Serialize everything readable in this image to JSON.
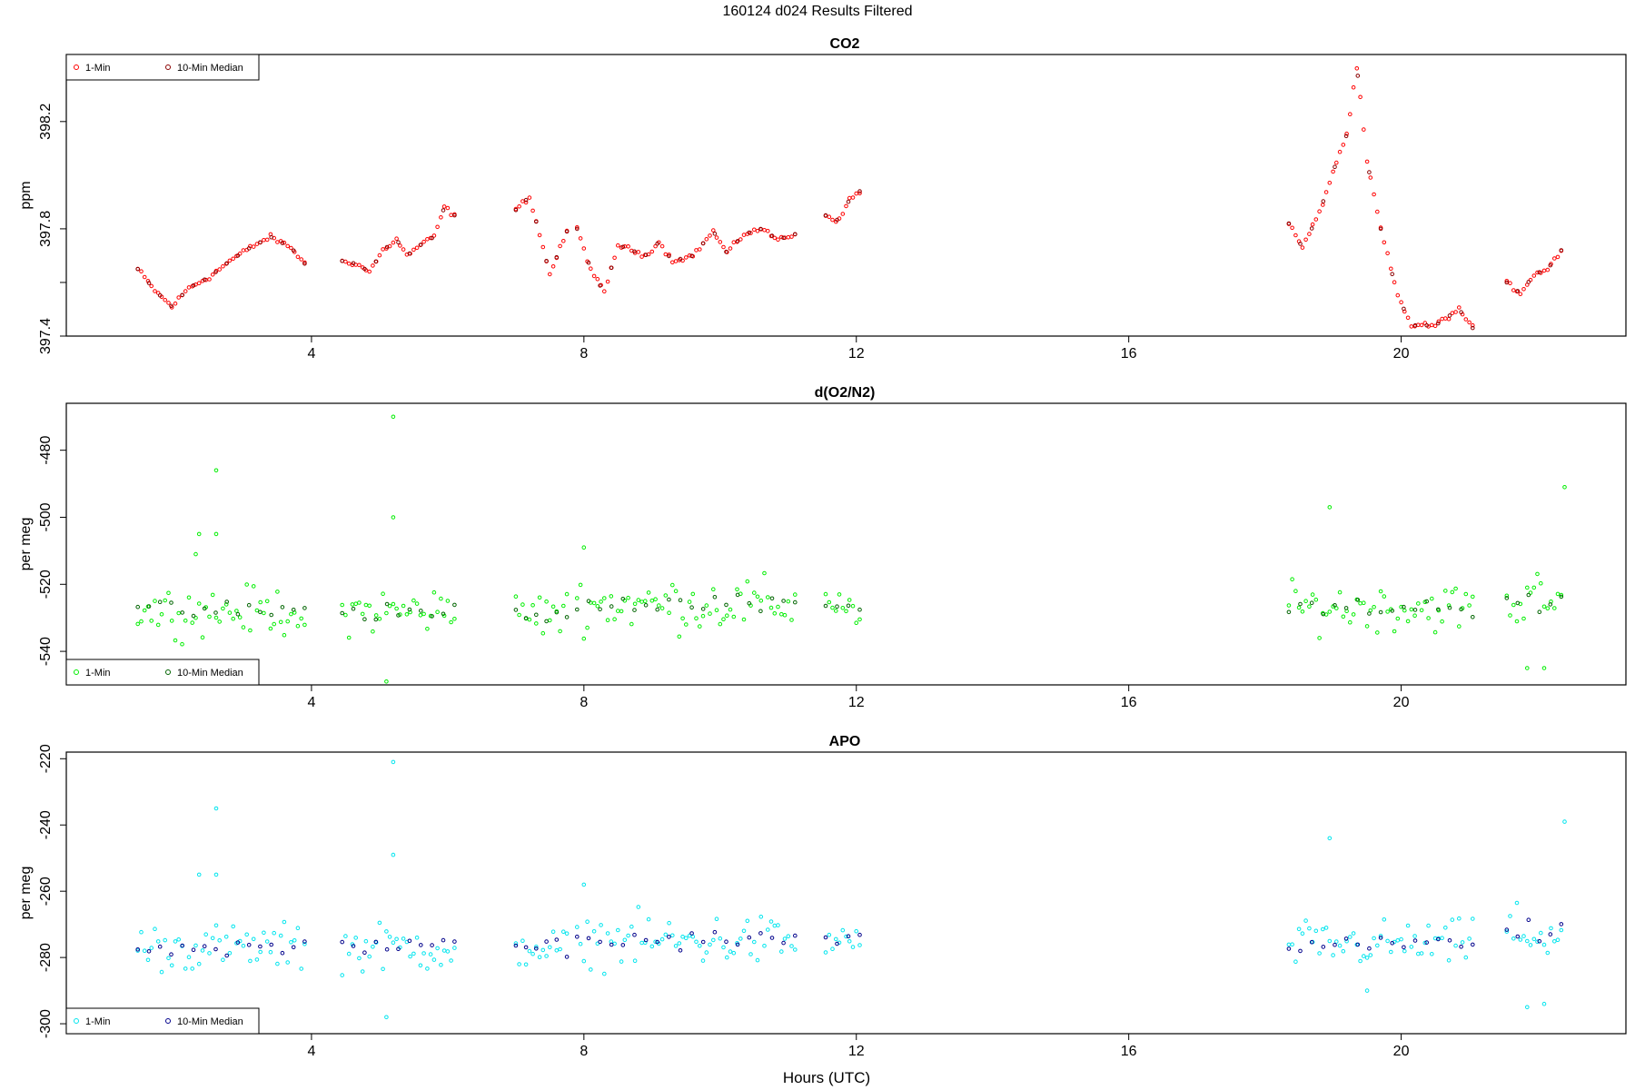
{
  "page_title": "160124   d024   Results Filtered",
  "xlabel": "Hours (UTC)",
  "chart_data": [
    {
      "type": "scatter",
      "title": "CO2",
      "ylabel": "ppm",
      "xlim": [
        0.4,
        23.3
      ],
      "ylim": [
        397.4,
        398.45
      ],
      "xticks": [
        4,
        8,
        12,
        16,
        20
      ],
      "yticks": [
        397.4,
        397.6,
        397.8,
        398.2
      ],
      "ytick_labels": [
        "397.4",
        "",
        "397.8",
        "398.2"
      ],
      "legend": {
        "position": "top-left",
        "entries": [
          "1-Min",
          "10-Min Median"
        ]
      },
      "colors": {
        "one_min": "#ff0000",
        "median": "#8b0000"
      },
      "segments": [
        {
          "x_start": 1.45,
          "x_end": 3.9,
          "points": [
            [
              1.45,
              397.65
            ],
            [
              1.7,
              397.57
            ],
            [
              1.95,
              397.51
            ],
            [
              2.2,
              397.58
            ],
            [
              2.5,
              397.62
            ],
            [
              2.8,
              397.68
            ],
            [
              3.1,
              397.73
            ],
            [
              3.4,
              397.77
            ],
            [
              3.7,
              397.73
            ],
            [
              3.9,
              397.67
            ]
          ]
        },
        {
          "x_start": 4.45,
          "x_end": 6.1,
          "points": [
            [
              4.45,
              397.68
            ],
            [
              4.65,
              397.67
            ],
            [
              4.85,
              397.64
            ],
            [
              5.05,
              397.72
            ],
            [
              5.25,
              397.76
            ],
            [
              5.4,
              397.7
            ],
            [
              5.6,
              397.74
            ],
            [
              5.8,
              397.77
            ],
            [
              5.95,
              397.88
            ],
            [
              6.1,
              397.85
            ]
          ]
        },
        {
          "x_start": 7.0,
          "x_end": 7.75,
          "points": [
            [
              7.0,
              397.87
            ],
            [
              7.2,
              397.92
            ],
            [
              7.35,
              397.78
            ],
            [
              7.5,
              397.63
            ],
            [
              7.75,
              397.79
            ]
          ]
        },
        {
          "x_start": 7.9,
          "x_end": 11.1,
          "points": [
            [
              7.9,
              397.8
            ],
            [
              8.1,
              397.65
            ],
            [
              8.3,
              397.56
            ],
            [
              8.5,
              397.74
            ],
            [
              8.7,
              397.72
            ],
            [
              8.9,
              397.7
            ],
            [
              9.1,
              397.75
            ],
            [
              9.3,
              397.68
            ],
            [
              9.6,
              397.7
            ],
            [
              9.9,
              397.79
            ],
            [
              10.1,
              397.71
            ],
            [
              10.35,
              397.78
            ],
            [
              10.6,
              397.8
            ],
            [
              10.85,
              397.76
            ],
            [
              11.1,
              397.78
            ]
          ]
        },
        {
          "x_start": 11.55,
          "x_end": 12.05,
          "points": [
            [
              11.55,
              397.85
            ],
            [
              11.75,
              397.83
            ],
            [
              11.9,
              397.91
            ],
            [
              12.05,
              397.94
            ]
          ]
        },
        {
          "x_start": 18.35,
          "x_end": 21.05,
          "points": [
            [
              18.35,
              397.82
            ],
            [
              18.55,
              397.73
            ],
            [
              18.8,
              397.86
            ],
            [
              19.05,
              398.05
            ],
            [
              19.2,
              398.15
            ],
            [
              19.35,
              398.4
            ],
            [
              19.5,
              398.05
            ],
            [
              19.7,
              397.8
            ],
            [
              19.95,
              397.55
            ],
            [
              20.15,
              397.44
            ],
            [
              20.5,
              397.44
            ],
            [
              20.85,
              397.5
            ],
            [
              21.05,
              397.43
            ]
          ]
        },
        {
          "x_start": 21.55,
          "x_end": 22.35,
          "points": [
            [
              21.55,
              397.6
            ],
            [
              21.75,
              397.56
            ],
            [
              21.95,
              397.63
            ],
            [
              22.15,
              397.65
            ],
            [
              22.35,
              397.72
            ]
          ]
        }
      ]
    },
    {
      "type": "scatter",
      "title": "d(O2/N2)",
      "ylabel": "per meg",
      "xlim": [
        0.4,
        23.3
      ],
      "ylim": [
        -550,
        -466
      ],
      "xticks": [
        4,
        8,
        12,
        16,
        20
      ],
      "yticks": [
        -540,
        -520,
        -500,
        -480
      ],
      "legend": {
        "position": "bottom-left",
        "entries": [
          "1-Min",
          "10-Min Median"
        ]
      },
      "colors": {
        "one_min": "#00ee00",
        "median": "#006400"
      },
      "segments": [
        {
          "x_start": 1.45,
          "x_end": 3.9,
          "center": -528,
          "spread": 7
        },
        {
          "x_start": 4.45,
          "x_end": 6.1,
          "center": -528,
          "spread": 7
        },
        {
          "x_start": 7.0,
          "x_end": 7.75,
          "center": -529,
          "spread": 7
        },
        {
          "x_start": 7.9,
          "x_end": 11.1,
          "center": -526,
          "spread": 8
        },
        {
          "x_start": 11.55,
          "x_end": 12.05,
          "center": -527,
          "spread": 5
        },
        {
          "x_start": 18.35,
          "x_end": 21.05,
          "center": -527,
          "spread": 7
        },
        {
          "x_start": 21.55,
          "x_end": 22.35,
          "center": -525,
          "spread": 9
        }
      ],
      "outliers": [
        [
          2.6,
          -486
        ],
        [
          2.35,
          -505
        ],
        [
          2.6,
          -505
        ],
        [
          2.3,
          -511
        ],
        [
          5.2,
          -470
        ],
        [
          5.2,
          -500
        ],
        [
          5.1,
          -549
        ],
        [
          8.0,
          -509
        ],
        [
          18.95,
          -497
        ],
        [
          22.4,
          -491
        ],
        [
          22.1,
          -545
        ],
        [
          21.85,
          -545
        ]
      ]
    },
    {
      "type": "scatter",
      "title": "APO",
      "ylabel": "per meg",
      "xlim": [
        0.4,
        23.3
      ],
      "ylim": [
        -303,
        -218
      ],
      "xticks": [
        4,
        8,
        12,
        16,
        20
      ],
      "yticks": [
        -300,
        -280,
        -260,
        -240,
        -220
      ],
      "legend": {
        "position": "bottom-left",
        "entries": [
          "1-Min",
          "10-Min Median"
        ]
      },
      "colors": {
        "one_min": "#00e5ee",
        "median": "#00008b"
      },
      "segments": [
        {
          "x_start": 1.45,
          "x_end": 3.9,
          "center": -277,
          "spread": 7
        },
        {
          "x_start": 4.45,
          "x_end": 6.1,
          "center": -277,
          "spread": 7
        },
        {
          "x_start": 7.0,
          "x_end": 7.75,
          "center": -277,
          "spread": 6
        },
        {
          "x_start": 7.9,
          "x_end": 11.1,
          "center": -275,
          "spread": 8
        },
        {
          "x_start": 11.55,
          "x_end": 12.05,
          "center": -275,
          "spread": 5
        },
        {
          "x_start": 18.35,
          "x_end": 21.05,
          "center": -276,
          "spread": 7
        },
        {
          "x_start": 21.55,
          "x_end": 22.35,
          "center": -273,
          "spread": 9
        }
      ],
      "outliers": [
        [
          2.6,
          -235
        ],
        [
          2.35,
          -255
        ],
        [
          2.6,
          -255
        ],
        [
          5.2,
          -221
        ],
        [
          5.2,
          -249
        ],
        [
          5.1,
          -298
        ],
        [
          8.0,
          -258
        ],
        [
          18.95,
          -244
        ],
        [
          22.4,
          -239
        ],
        [
          22.1,
          -294
        ],
        [
          21.85,
          -295
        ],
        [
          19.5,
          -290
        ]
      ]
    }
  ]
}
